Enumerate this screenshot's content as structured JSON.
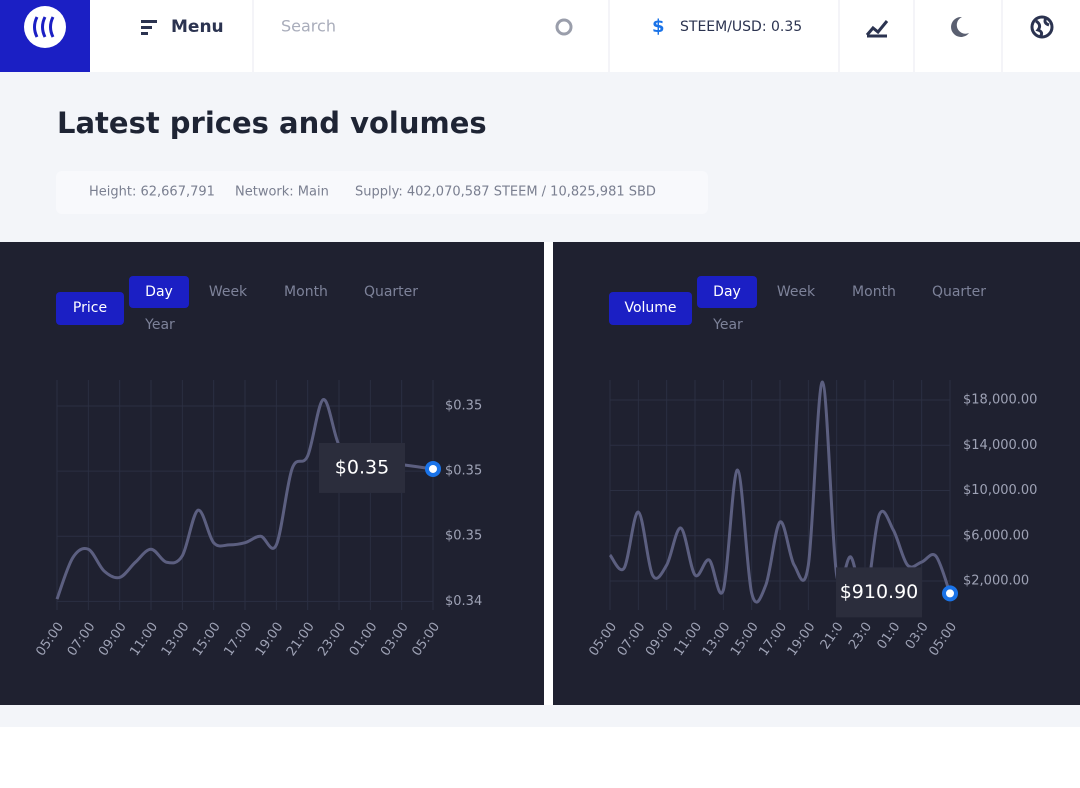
{
  "header": {
    "menu": "Menu",
    "search": "Search",
    "price": "STEEM/USD: 0.35"
  },
  "title": "Latest prices and volumes",
  "stats": [
    "Height: 62,667,791",
    "Network: Main",
    "Supply: 402,070,587 STEEM / 10,825,981 SBD"
  ],
  "panels": [
    {
      "button": "Price",
      "tabs": [
        "Day",
        "Week",
        "Month",
        "Quarter",
        "Year"
      ]
    },
    {
      "button": "Volume",
      "tabs": [
        "Day",
        "Week",
        "Month",
        "Quarter",
        "Year"
      ]
    }
  ],
  "chart_data": [
    {
      "type": "line",
      "color": "#5c5f80",
      "marker_color": "#1a73e8",
      "grid": true,
      "tooltip": "$0.35",
      "x": [
        "05:00",
        null,
        "07:00",
        null,
        "09:00",
        null,
        "11:00",
        null,
        "13:00",
        null,
        "15:00",
        null,
        "17:00",
        null,
        "19:00",
        null,
        "21:00",
        null,
        "23:00",
        null,
        "01:00",
        null,
        "03:00",
        null,
        "05:00"
      ],
      "values": [
        0.3446,
        0.3465,
        0.3469,
        0.3459,
        0.3456,
        0.3463,
        0.3469,
        0.3463,
        0.3466,
        0.3487,
        0.3472,
        0.3471,
        0.3472,
        0.3475,
        0.3471,
        0.3506,
        0.3512,
        0.3538,
        0.3517,
        0.3512,
        0.351,
        0.3509,
        0.3508,
        0.3507,
        0.3506
      ],
      "ylim": [
        0.3441,
        0.3547
      ],
      "yticks": [
        {
          "value": 0.3445,
          "label": "$0.34"
        },
        {
          "value": 0.3475,
          "label": "$0.35"
        },
        {
          "value": 0.3505,
          "label": "$0.35"
        },
        {
          "value": 0.3535,
          "label": "$0.35"
        }
      ]
    },
    {
      "type": "line",
      "color": "#5c5f80",
      "marker_color": "#1a73e8",
      "grid": true,
      "tooltip": "$910.90",
      "x": [
        "05:00",
        null,
        "07:00",
        null,
        "09:00",
        null,
        "11:00",
        null,
        "13:00",
        null,
        "15:00",
        null,
        "17:00",
        null,
        "19:00",
        null,
        "21:0",
        null,
        "23:0",
        null,
        "01:0",
        null,
        "03:0",
        null,
        "05:00"
      ],
      "values": [
        4300,
        3150,
        8100,
        2530,
        3410,
        6690,
        2530,
        3860,
        1200,
        11810,
        940,
        1650,
        7220,
        3410,
        3410,
        19590,
        2530,
        4120,
        320,
        7830,
        6510,
        3410,
        3680,
        4210,
        910.9
      ],
      "ylim": [
        -560,
        19770
      ],
      "yticks": [
        {
          "value": 2000,
          "label": "$2,000.00"
        },
        {
          "value": 6000,
          "label": "$6,000.00"
        },
        {
          "value": 10000,
          "label": "$10,000.00"
        },
        {
          "value": 14000,
          "label": "$14,000.00"
        },
        {
          "value": 18000,
          "label": "$18,000.00"
        }
      ]
    }
  ]
}
